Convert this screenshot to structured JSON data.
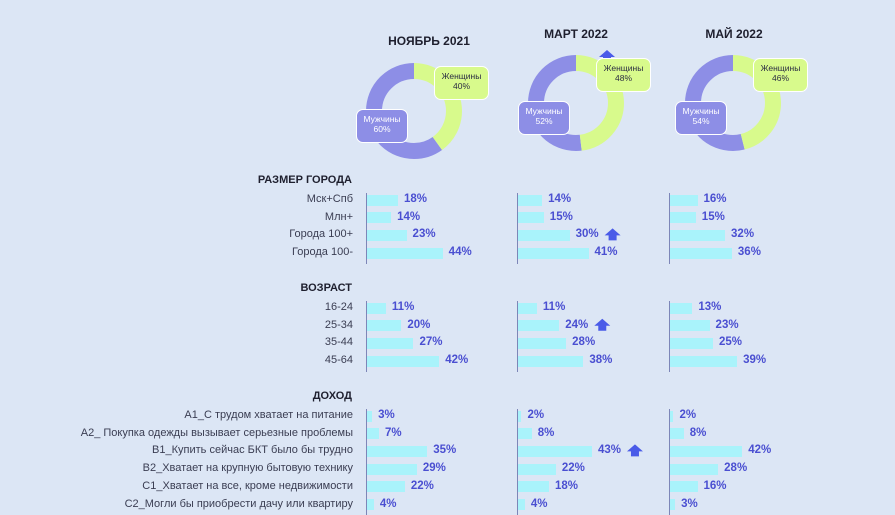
{
  "title_fragment": "...",
  "periods": [
    "НОЯБРЬ 2021",
    "МАРТ 2022",
    "МАЙ 2022"
  ],
  "gender": [
    {
      "male_label": "Мужчины",
      "male_value": "60%",
      "female_label": "Женщины",
      "female_value": "40%",
      "male": 60,
      "female": 40
    },
    {
      "male_label": "Мужчины",
      "male_value": "52%",
      "female_label": "Женщины",
      "female_value": "48%",
      "male": 52,
      "female": 48
    },
    {
      "male_label": "Мужчины",
      "male_value": "54%",
      "female_label": "Женщины",
      "female_value": "46%",
      "male": 54,
      "female": 46
    }
  ],
  "colors": {
    "male": "#8d8ee6",
    "female": "#d8fa8c",
    "bar": "#a9f3fb",
    "value_text": "#4a4fd1",
    "arrow": "#4a5be8",
    "background": "#dce6f5"
  },
  "chart_data": [
    {
      "type": "pie",
      "title": "НОЯБРЬ 2021",
      "categories": [
        "Мужчины",
        "Женщины"
      ],
      "values": [
        60,
        40
      ]
    },
    {
      "type": "pie",
      "title": "МАРТ 2022",
      "categories": [
        "Мужчины",
        "Женщины"
      ],
      "values": [
        52,
        48
      ]
    },
    {
      "type": "pie",
      "title": "МАЙ 2022",
      "categories": [
        "Мужчины",
        "Женщины"
      ],
      "values": [
        54,
        46
      ]
    },
    {
      "type": "bar",
      "title": "РАЗМЕР ГОРОДА",
      "categories": [
        "Мск+Спб",
        "Млн+",
        "Города 100+",
        "Города 100-"
      ],
      "series": [
        {
          "name": "НОЯБРЬ 2021",
          "values": [
            18,
            14,
            23,
            44
          ]
        },
        {
          "name": "МАРТ 2022",
          "values": [
            14,
            15,
            30,
            41
          ]
        },
        {
          "name": "МАЙ 2022",
          "values": [
            16,
            15,
            32,
            36
          ]
        }
      ],
      "increase_markers": [
        {
          "series": "МАРТ 2022",
          "category": "Города 100+"
        }
      ]
    },
    {
      "type": "bar",
      "title": "ВОЗРАСТ",
      "categories": [
        "16-24",
        "25-34",
        "35-44",
        "45-64"
      ],
      "series": [
        {
          "name": "НОЯБРЬ 2021",
          "values": [
            11,
            20,
            27,
            42
          ]
        },
        {
          "name": "МАРТ 2022",
          "values": [
            11,
            24,
            28,
            38
          ]
        },
        {
          "name": "МАЙ 2022",
          "values": [
            13,
            23,
            25,
            39
          ]
        }
      ],
      "increase_markers": [
        {
          "series": "МАРТ 2022",
          "category": "25-34"
        }
      ]
    },
    {
      "type": "bar",
      "title": "ДОХОД",
      "categories": [
        "A1_С трудом хватает на питание",
        "A2_ Покупка одежды вызывает серьезные проблемы",
        "B1_Купить сейчас БКТ было бы трудно",
        "B2_Хватает на крупную бытовую технику",
        "C1_Хватает на все, кроме недвижимости",
        "C2_Могли бы приобрести дачу или квартиру"
      ],
      "series": [
        {
          "name": "НОЯБРЬ 2021",
          "values": [
            3,
            7,
            35,
            29,
            22,
            4
          ]
        },
        {
          "name": "МАРТ 2022",
          "values": [
            2,
            8,
            43,
            22,
            18,
            4
          ]
        },
        {
          "name": "МАЙ 2022",
          "values": [
            2,
            8,
            42,
            28,
            16,
            3
          ]
        }
      ],
      "increase_markers": [
        {
          "series": "МАРТ 2022",
          "category": "B1_Купить сейчас БКТ было бы трудно"
        }
      ]
    }
  ]
}
